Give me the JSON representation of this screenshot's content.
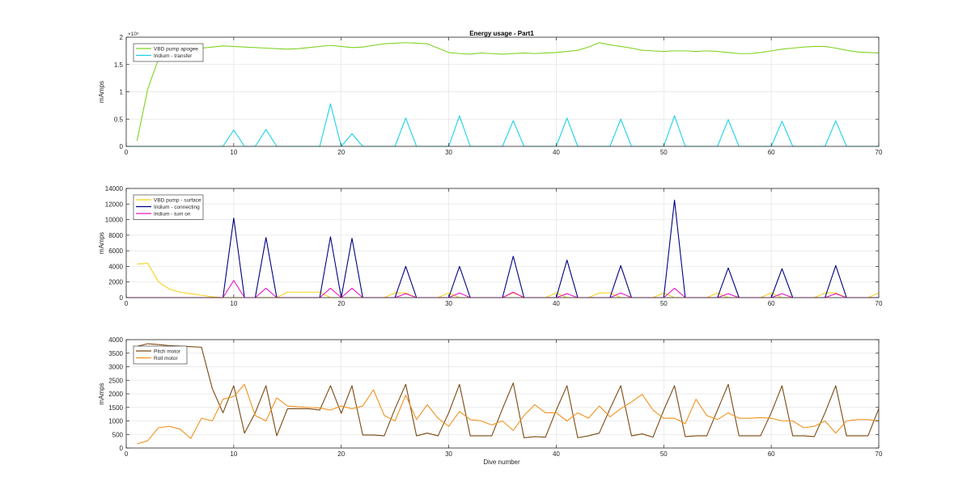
{
  "figure": {
    "title": "Energy usage - Part1",
    "xlabel": "Dive number"
  },
  "chart_data": [
    {
      "type": "line",
      "ylabel": "mAmps",
      "xlim": [
        0,
        70
      ],
      "ylim": [
        0,
        200000
      ],
      "x_ticks": [
        0,
        10,
        20,
        30,
        40,
        50,
        60,
        70
      ],
      "y_ticks": [
        0,
        50000,
        100000,
        150000,
        200000
      ],
      "y_tick_labels": [
        "0",
        "0.5",
        "1",
        "1.5",
        "2"
      ],
      "y_exponent_label": "×10⁵",
      "grid": true,
      "legend_position": "top-left",
      "series": [
        {
          "name": "VBD pump apogee",
          "color": "#7ed321",
          "x": [
            1,
            2,
            3,
            4,
            5,
            6,
            7,
            8,
            9,
            10,
            11,
            12,
            13,
            14,
            15,
            16,
            17,
            18,
            19,
            20,
            21,
            22,
            23,
            24,
            25,
            26,
            27,
            28,
            29,
            30,
            31,
            32,
            33,
            34,
            35,
            36,
            37,
            38,
            39,
            40,
            41,
            42,
            43,
            44,
            45,
            46,
            47,
            48,
            49,
            50,
            51,
            52,
            53,
            54,
            55,
            56,
            57,
            58,
            59,
            60,
            61,
            62,
            63,
            64,
            65,
            66,
            67,
            68,
            69,
            70
          ],
          "y": [
            10000,
            105000,
            160000,
            175000,
            180000,
            178000,
            180000,
            182000,
            184000,
            183000,
            182000,
            181000,
            180000,
            179000,
            178000,
            179000,
            181000,
            183000,
            185000,
            183000,
            181000,
            182000,
            185000,
            188000,
            189000,
            190000,
            189000,
            188000,
            180000,
            172000,
            170000,
            169000,
            171000,
            170000,
            169000,
            170000,
            171000,
            170000,
            171000,
            172000,
            174000,
            176000,
            182000,
            190000,
            186000,
            183000,
            180000,
            176000,
            175000,
            174000,
            175000,
            175000,
            174000,
            175000,
            174000,
            172000,
            170000,
            170000,
            172000,
            175000,
            178000,
            180000,
            182000,
            183000,
            183000,
            180000,
            176000,
            173000,
            172000,
            171000
          ]
        },
        {
          "name": "Iridium - transfer",
          "color": "#19d3e6",
          "x": [
            0,
            9,
            10,
            11,
            12,
            13,
            14,
            18,
            19,
            20,
            21,
            22,
            25,
            26,
            27,
            30,
            31,
            32,
            35,
            36,
            37,
            40,
            41,
            42,
            45,
            46,
            47,
            50,
            51,
            52,
            55,
            56,
            57,
            60,
            61,
            62,
            65,
            66,
            67,
            70
          ],
          "y": [
            0,
            0,
            30000,
            0,
            0,
            31000,
            0,
            0,
            78000,
            0,
            23000,
            0,
            0,
            52000,
            0,
            0,
            56000,
            0,
            0,
            47000,
            0,
            0,
            52000,
            0,
            0,
            50000,
            0,
            0,
            56000,
            0,
            0,
            49000,
            0,
            0,
            46000,
            0,
            0,
            47000,
            0,
            0
          ]
        }
      ]
    },
    {
      "type": "line",
      "ylabel": "mAmps",
      "xlim": [
        0,
        70
      ],
      "ylim": [
        0,
        14000
      ],
      "x_ticks": [
        0,
        10,
        20,
        30,
        40,
        50,
        60,
        70
      ],
      "y_ticks": [
        0,
        2000,
        4000,
        6000,
        8000,
        10000,
        12000,
        14000
      ],
      "y_tick_labels": [
        "0",
        "2000",
        "4000",
        "6000",
        "8000",
        "10000",
        "12000",
        "14000"
      ],
      "grid": true,
      "legend_position": "top-left",
      "series": [
        {
          "name": "VBD pump - surface",
          "color": "#f5d21e",
          "x": [
            1,
            2,
            3,
            4,
            5,
            6,
            7,
            8,
            9,
            10,
            11,
            12,
            13,
            14,
            15,
            16,
            17,
            18,
            19,
            20,
            21,
            22,
            23,
            24,
            25,
            26,
            27,
            28,
            29,
            30,
            31,
            32,
            33,
            34,
            35,
            36,
            37,
            38,
            39,
            40,
            41,
            42,
            43,
            44,
            45,
            46,
            47,
            48,
            49,
            50,
            51,
            52,
            53,
            54,
            55,
            56,
            57,
            58,
            59,
            60,
            61,
            62,
            63,
            64,
            65,
            66,
            67,
            68,
            69,
            70
          ],
          "y": [
            4300,
            4400,
            2000,
            1100,
            700,
            500,
            300,
            100,
            0,
            0,
            0,
            0,
            0,
            0,
            700,
            700,
            700,
            700,
            0,
            0,
            0,
            0,
            0,
            0,
            600,
            600,
            0,
            0,
            0,
            600,
            0,
            0,
            0,
            0,
            0,
            600,
            0,
            0,
            0,
            600,
            0,
            0,
            0,
            600,
            600,
            0,
            0,
            0,
            0,
            600,
            0,
            0,
            0,
            0,
            600,
            0,
            0,
            0,
            0,
            600,
            0,
            0,
            0,
            0,
            600,
            600,
            0,
            0,
            0,
            600
          ]
        },
        {
          "name": "Iridium - connecting",
          "color": "#000080",
          "x": [
            0,
            9,
            10,
            11,
            12,
            13,
            14,
            18,
            19,
            20,
            21,
            22,
            25,
            26,
            27,
            30,
            31,
            32,
            35,
            36,
            37,
            40,
            41,
            42,
            45,
            46,
            47,
            50,
            51,
            52,
            55,
            56,
            57,
            60,
            61,
            62,
            65,
            66,
            67,
            70
          ],
          "y": [
            0,
            0,
            10200,
            0,
            0,
            7700,
            0,
            0,
            7800,
            0,
            7600,
            0,
            0,
            4000,
            0,
            0,
            4000,
            0,
            0,
            5300,
            0,
            0,
            4800,
            0,
            0,
            4100,
            0,
            0,
            12500,
            0,
            0,
            3800,
            0,
            0,
            3700,
            0,
            0,
            4100,
            0,
            0
          ]
        },
        {
          "name": "Iridium - turn on",
          "color": "#e619c8",
          "x": [
            0,
            9,
            10,
            11,
            12,
            13,
            14,
            18,
            19,
            20,
            21,
            22,
            25,
            26,
            27,
            30,
            31,
            32,
            35,
            36,
            37,
            40,
            41,
            42,
            45,
            46,
            47,
            50,
            51,
            52,
            55,
            56,
            57,
            60,
            61,
            62,
            65,
            66,
            67,
            70
          ],
          "y": [
            0,
            0,
            2200,
            0,
            0,
            1200,
            0,
            0,
            1200,
            0,
            1200,
            0,
            0,
            500,
            0,
            0,
            600,
            0,
            0,
            700,
            0,
            0,
            500,
            0,
            0,
            600,
            0,
            0,
            1200,
            0,
            0,
            500,
            0,
            0,
            500,
            0,
            0,
            500,
            0,
            0
          ]
        }
      ]
    },
    {
      "type": "line",
      "ylabel": "mAmps",
      "xlabel": "Dive number",
      "xlim": [
        0,
        70
      ],
      "ylim": [
        0,
        4000
      ],
      "x_ticks": [
        0,
        10,
        20,
        30,
        40,
        50,
        60,
        70
      ],
      "y_ticks": [
        0,
        500,
        1000,
        1500,
        2000,
        2500,
        3000,
        3500,
        4000
      ],
      "y_tick_labels": [
        "0",
        "500",
        "1000",
        "1500",
        "2000",
        "2500",
        "3000",
        "3500",
        "4000"
      ],
      "grid": true,
      "legend_position": "top-left",
      "series": [
        {
          "name": "Pitch motor",
          "color": "#7a4a12",
          "x": [
            1,
            2,
            3,
            4,
            5,
            6,
            7,
            8,
            9,
            10,
            11,
            12,
            13,
            14,
            15,
            16,
            17,
            18,
            19,
            20,
            21,
            22,
            23,
            24,
            25,
            26,
            27,
            28,
            29,
            30,
            31,
            32,
            33,
            34,
            35,
            36,
            37,
            38,
            39,
            40,
            41,
            42,
            43,
            44,
            45,
            46,
            47,
            48,
            49,
            50,
            51,
            52,
            53,
            54,
            55,
            56,
            57,
            58,
            59,
            60,
            61,
            62,
            63,
            64,
            65,
            66,
            67,
            68,
            69,
            70
          ],
          "y": [
            3750,
            3850,
            3820,
            3780,
            3760,
            3740,
            3720,
            2200,
            1300,
            2300,
            550,
            1300,
            2300,
            450,
            1450,
            1450,
            1450,
            1400,
            2300,
            1280,
            2300,
            480,
            480,
            450,
            1450,
            2350,
            450,
            550,
            450,
            1300,
            2350,
            450,
            450,
            450,
            1450,
            2400,
            380,
            420,
            400,
            1400,
            2300,
            380,
            450,
            550,
            1450,
            2300,
            450,
            520,
            400,
            1400,
            2300,
            420,
            450,
            450,
            1400,
            2350,
            450,
            450,
            450,
            1300,
            2300,
            450,
            450,
            420,
            1300,
            2300,
            450,
            450,
            450,
            1450
          ]
        },
        {
          "name": "Roll motor",
          "color": "#f0921e",
          "x": [
            1,
            2,
            3,
            4,
            5,
            6,
            7,
            8,
            9,
            10,
            11,
            12,
            13,
            14,
            15,
            16,
            17,
            18,
            19,
            20,
            21,
            22,
            23,
            24,
            25,
            26,
            27,
            28,
            29,
            30,
            31,
            32,
            33,
            34,
            35,
            36,
            37,
            38,
            39,
            40,
            41,
            42,
            43,
            44,
            45,
            46,
            47,
            48,
            49,
            50,
            51,
            52,
            53,
            54,
            55,
            56,
            57,
            58,
            59,
            60,
            61,
            62,
            63,
            64,
            65,
            66,
            67,
            68,
            69,
            70
          ],
          "y": [
            150,
            270,
            750,
            800,
            700,
            350,
            1100,
            1000,
            1800,
            1900,
            2350,
            1200,
            1000,
            1850,
            1550,
            1520,
            1500,
            1480,
            1400,
            1550,
            1450,
            1550,
            2150,
            1200,
            1000,
            1950,
            1050,
            1600,
            1100,
            800,
            1350,
            1050,
            1000,
            850,
            1000,
            650,
            1200,
            1600,
            1300,
            1300,
            1000,
            1300,
            1100,
            1550,
            1150,
            1450,
            1700,
            1980,
            1400,
            1100,
            1100,
            900,
            1800,
            1200,
            1050,
            1300,
            1100,
            1100,
            1120,
            1100,
            1000,
            1000,
            750,
            800,
            1000,
            550,
            1000,
            1050,
            1050,
            1000
          ]
        }
      ]
    }
  ]
}
